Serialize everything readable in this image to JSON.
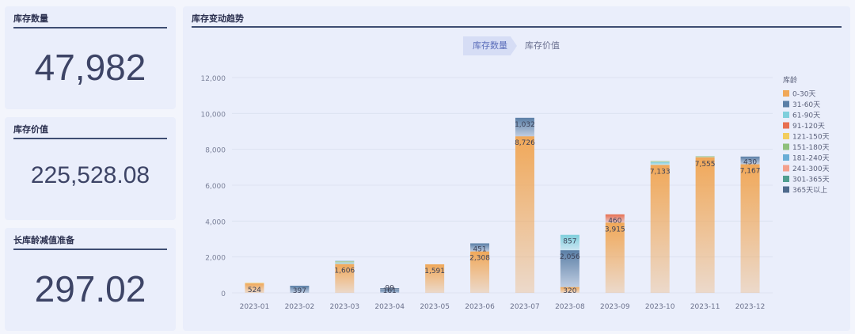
{
  "kpis": {
    "qty": {
      "title": "库存数量",
      "value": "47,982"
    },
    "val": {
      "title": "库存价值",
      "value": "225,528.08"
    },
    "impair": {
      "title": "长库龄减值准备",
      "value": "297.02"
    }
  },
  "chart_title": "库存变动趋势",
  "tabs": {
    "active": "库存数量",
    "other": "库存价值"
  },
  "chart_data": {
    "type": "bar",
    "stacked": true,
    "categories": [
      "2023-01",
      "2023-02",
      "2023-03",
      "2023-04",
      "2023-05",
      "2023-06",
      "2023-07",
      "2023-08",
      "2023-09",
      "2023-10",
      "2023-11",
      "2023-12"
    ],
    "ylim": [
      0,
      12000
    ],
    "yticks": [
      0,
      2000,
      4000,
      6000,
      8000,
      10000,
      12000
    ],
    "legend_title": "库龄",
    "legend_position": "right",
    "grid": true,
    "series": [
      {
        "name": "0-30天",
        "color": "#f0a859",
        "values": [
          524,
          0,
          1606,
          0,
          1591,
          2308,
          8726,
          320,
          3915,
          7133,
          7555,
          7167
        ]
      },
      {
        "name": "31-60天",
        "color": "#5b7fa6",
        "values": [
          0,
          397,
          0,
          161,
          0,
          451,
          1032,
          2056,
          0,
          0,
          0,
          430
        ]
      },
      {
        "name": "61-90天",
        "color": "#7fcfdc",
        "values": [
          0,
          0,
          100,
          0,
          0,
          0,
          0,
          857,
          0,
          150,
          0,
          0
        ]
      },
      {
        "name": "91-120天",
        "color": "#e76f51",
        "values": [
          0,
          0,
          0,
          0,
          0,
          0,
          0,
          0,
          460,
          0,
          0,
          0
        ]
      },
      {
        "name": "121-150天",
        "color": "#f2cd5e",
        "values": [
          40,
          0,
          30,
          0,
          0,
          0,
          0,
          0,
          0,
          0,
          0,
          0
        ]
      },
      {
        "name": "151-180天",
        "color": "#8ec07c",
        "values": [
          0,
          0,
          20,
          0,
          0,
          0,
          0,
          0,
          0,
          60,
          60,
          0
        ]
      },
      {
        "name": "181-240天",
        "color": "#6aaed6",
        "values": [
          0,
          0,
          30,
          0,
          0,
          0,
          0,
          0,
          0,
          0,
          0,
          0
        ]
      },
      {
        "name": "241-300天",
        "color": "#f4a08c",
        "values": [
          0,
          0,
          0,
          0,
          0,
          0,
          0,
          0,
          0,
          0,
          0,
          0
        ]
      },
      {
        "name": "301-365天",
        "color": "#4f9e8f",
        "values": [
          0,
          0,
          0,
          0,
          0,
          0,
          0,
          0,
          0,
          0,
          0,
          0
        ]
      },
      {
        "name": "365天以上",
        "color": "#4e6a8c",
        "values": [
          0,
          0,
          0,
          99,
          0,
          0,
          0,
          0,
          0,
          0,
          0,
          0
        ]
      }
    ],
    "labels": [
      {
        "cat": 0,
        "series": 0,
        "text": "524"
      },
      {
        "cat": 1,
        "series": 1,
        "text": "397"
      },
      {
        "cat": 2,
        "series": 0,
        "text": "1,606"
      },
      {
        "cat": 3,
        "series": 1,
        "text": "161"
      },
      {
        "cat": 3,
        "series": 9,
        "text": "99"
      },
      {
        "cat": 4,
        "series": 0,
        "text": "1,591"
      },
      {
        "cat": 5,
        "series": 0,
        "text": "2,308"
      },
      {
        "cat": 5,
        "series": 1,
        "text": "451"
      },
      {
        "cat": 6,
        "series": 0,
        "text": "8,726"
      },
      {
        "cat": 6,
        "series": 1,
        "text": "1,032"
      },
      {
        "cat": 7,
        "series": 0,
        "text": "320"
      },
      {
        "cat": 7,
        "series": 1,
        "text": "2,056"
      },
      {
        "cat": 7,
        "series": 2,
        "text": "857"
      },
      {
        "cat": 8,
        "series": 0,
        "text": "3,915"
      },
      {
        "cat": 8,
        "series": 3,
        "text": "460"
      },
      {
        "cat": 9,
        "series": 0,
        "text": "7,133"
      },
      {
        "cat": 10,
        "series": 0,
        "text": "7,555"
      },
      {
        "cat": 11,
        "series": 0,
        "text": "7,167"
      },
      {
        "cat": 11,
        "series": 1,
        "text": "430"
      }
    ]
  }
}
